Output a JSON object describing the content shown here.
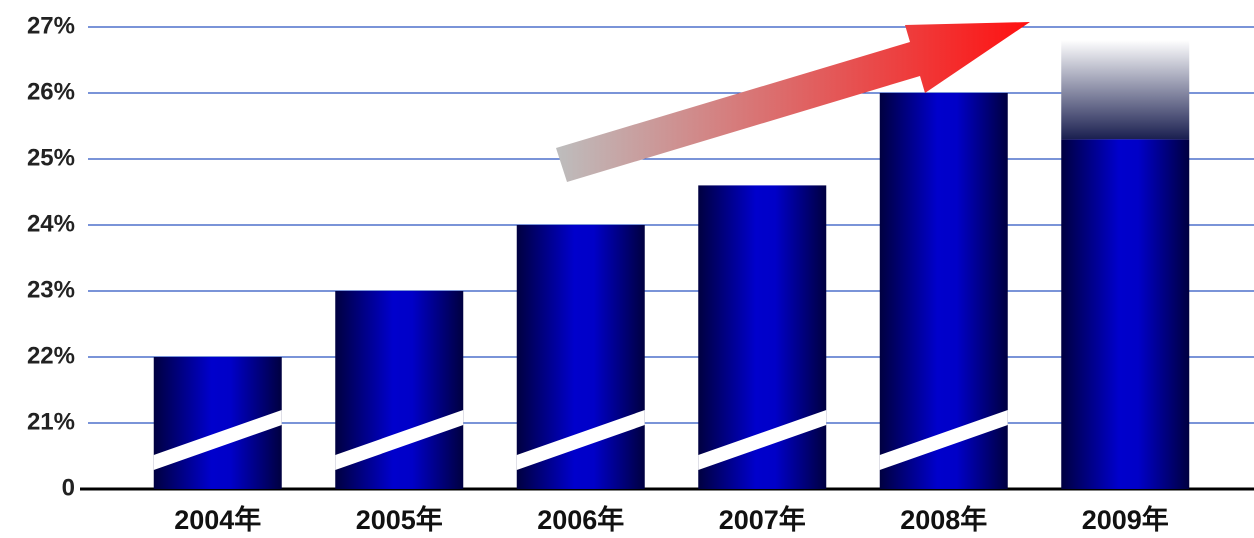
{
  "chart_data": {
    "type": "bar",
    "categories": [
      "2004年",
      "2005年",
      "2006年",
      "2007年",
      "2008年",
      "2009年"
    ],
    "values": [
      22,
      23,
      24,
      24.6,
      26,
      25.3
    ],
    "ylim": [
      0,
      27
    ],
    "yticks": [
      0,
      {
        "value": 21,
        "label": "21%"
      },
      {
        "value": 22,
        "label": "22%"
      },
      {
        "value": 23,
        "label": "23%"
      },
      {
        "value": 24,
        "label": "24%"
      },
      {
        "value": 25,
        "label": "25%"
      },
      {
        "value": 26,
        "label": "26%"
      },
      {
        "value": 27,
        "label": "27%"
      }
    ],
    "grid": true,
    "color": "#0000cc"
  }
}
